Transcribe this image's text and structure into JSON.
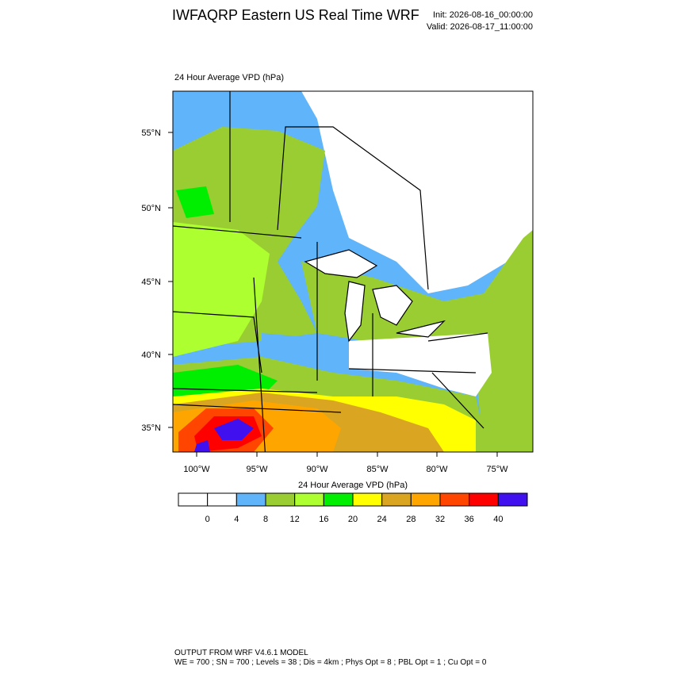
{
  "header": {
    "title": "IWFAQRP Eastern US Real Time WRF",
    "init": "Init: 2026-08-16_00:00:00",
    "valid": "Valid: 2026-08-17_11:00:00"
  },
  "map": {
    "title": "24 Hour Average VPD   (hPa)",
    "lat_labels": [
      "55°N",
      "50°N",
      "45°N",
      "40°N",
      "35°N"
    ],
    "lon_labels": [
      "100°W",
      "95°W",
      "90°W",
      "85°W",
      "80°W",
      "75°W"
    ]
  },
  "colorbar": {
    "title": "24 Hour Average VPD  (hPa)",
    "labels": [
      0,
      4,
      8,
      12,
      16,
      20,
      24,
      28,
      32,
      36,
      40
    ],
    "colors": [
      "#ffffff",
      "#ffffff",
      "#60b4fa",
      "#9acd32",
      "#adff2f",
      "#00ee00",
      "#ffff00",
      "#daa520",
      "#ffa500",
      "#ff4500",
      "#ff0000",
      "#4010ee"
    ]
  },
  "footer": {
    "line1": "OUTPUT FROM WRF V4.6.1 MODEL",
    "line2": "WE = 700 ; SN = 700 ; Levels = 38 ; Dis = 4km ; Phys Opt = 8 ; PBL Opt = 1 ; Cu Opt = 0"
  }
}
